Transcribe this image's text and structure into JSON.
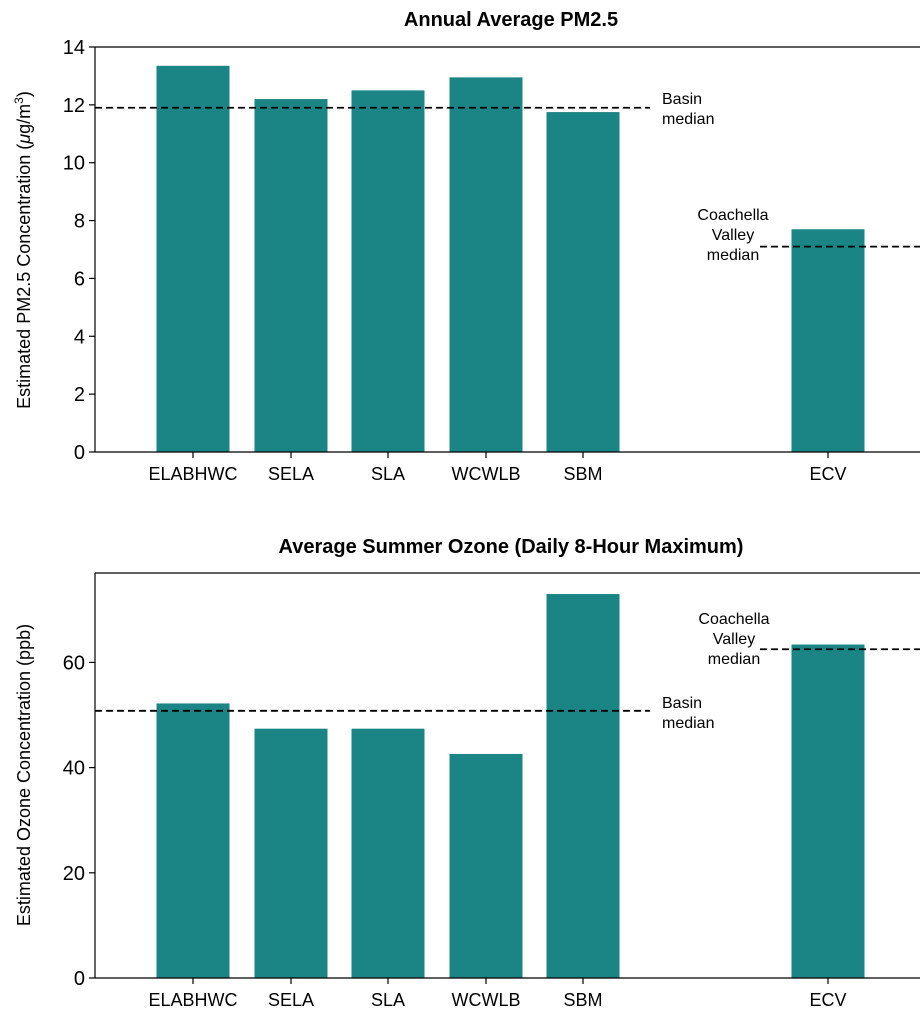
{
  "colors": {
    "bar": "#1b8484",
    "axis": "#000000",
    "median_line": "#000000"
  },
  "chart_data": [
    {
      "type": "bar",
      "title": "Annual Average PM2.5",
      "ylabel_main": "Estimated PM2.5 Concentration (",
      "ylabel_unit_mu": "μ",
      "ylabel_unit_rest": "g/m",
      "ylabel_unit_sup": "3",
      "ylabel_close": ")",
      "xlabel": "",
      "categories": [
        "ELABHWC",
        "SELA",
        "SLA",
        "WCWLB",
        "SBM",
        "ECV"
      ],
      "values": [
        13.35,
        12.2,
        12.5,
        12.95,
        11.75,
        7.7
      ],
      "ylim": [
        0,
        14
      ],
      "yticks": [
        "0",
        "2",
        "4",
        "6",
        "8",
        "10",
        "12",
        "14"
      ],
      "reference_lines": [
        {
          "label_lines": [
            "Basin",
            "median"
          ],
          "value": 11.9
        },
        {
          "label_lines": [
            "Coachella",
            "Valley",
            "median"
          ],
          "value": 7.1
        }
      ]
    },
    {
      "type": "bar",
      "title": "Average Summer Ozone (Daily 8-Hour Maximum)",
      "ylabel": "Estimated Ozone Concentration (ppb)",
      "xlabel": "",
      "categories": [
        "ELABHWC",
        "SELA",
        "SLA",
        "WCWLB",
        "SBM",
        "ECV"
      ],
      "values": [
        52.2,
        47.4,
        47.4,
        42.6,
        73.0,
        63.4
      ],
      "ylim": [
        0,
        77
      ],
      "yticks": [
        "0",
        "20",
        "40",
        "60"
      ],
      "reference_lines": [
        {
          "label_lines": [
            "Basin",
            "median"
          ],
          "value": 50.8
        },
        {
          "label_lines": [
            "Coachella",
            "Valley",
            "median"
          ],
          "value": 62.5
        }
      ]
    }
  ]
}
